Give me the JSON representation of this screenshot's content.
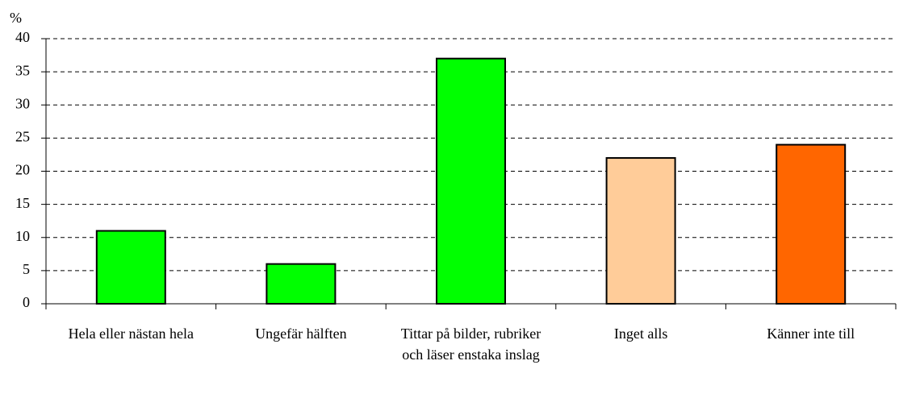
{
  "chart_data": {
    "type": "bar",
    "y_label": "%",
    "categories": [
      "Hela eller nästan hela",
      "Ungefär hälften",
      "Tittar på bilder, rubriker och läser enstaka inslag",
      "Inget alls",
      "Känner inte till"
    ],
    "values": [
      11,
      6,
      37,
      22,
      24
    ],
    "colors": [
      "#00ff00",
      "#00ff00",
      "#00ff00",
      "#ffcc99",
      "#ff6600"
    ],
    "ylim": [
      0,
      40
    ],
    "yticks": [
      0,
      5,
      10,
      15,
      20,
      25,
      30,
      35,
      40
    ],
    "grid": true
  }
}
